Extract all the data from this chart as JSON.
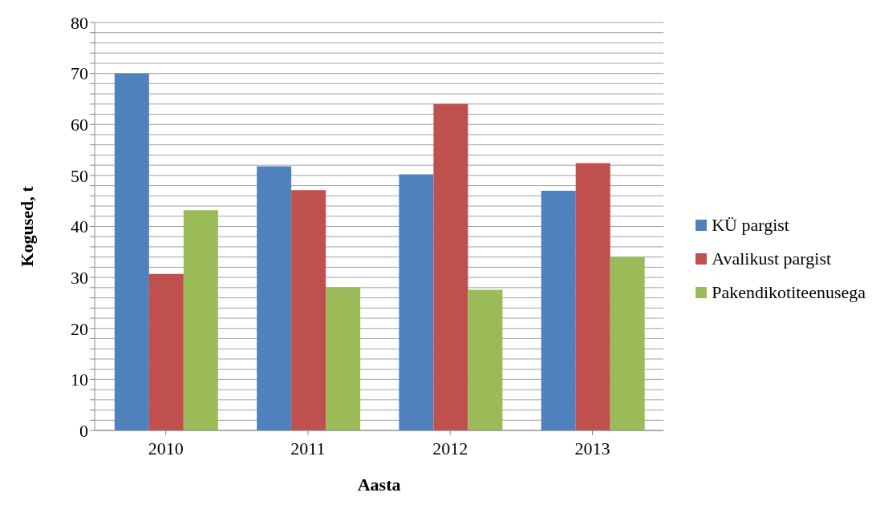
{
  "chart_data": {
    "type": "bar",
    "xlabel": "Aasta",
    "ylabel": "Kogused, t",
    "categories": [
      "2010",
      "2011",
      "2012",
      "2013"
    ],
    "series": [
      {
        "name": "KÜ pargist",
        "color": "#4f81bd",
        "values": [
          70,
          51.8,
          50.2,
          47
        ]
      },
      {
        "name": "Avalikust pargist",
        "color": "#c0504d",
        "values": [
          30.7,
          47.1,
          64,
          52.4
        ]
      },
      {
        "name": "Pakendikotiteenusega",
        "color": "#9bbb59",
        "values": [
          43.2,
          28.1,
          27.6,
          34
        ]
      }
    ],
    "ylim": [
      0,
      80
    ],
    "yticks": [
      0,
      {
        "value": 2,
        "label": null
      },
      {
        "value": 4,
        "label": null
      },
      {
        "value": 6,
        "label": null
      },
      {
        "value": 8,
        "label": null
      },
      10,
      {
        "value": 12,
        "label": null
      },
      {
        "value": 14,
        "label": null
      },
      {
        "value": 16,
        "label": null
      },
      {
        "value": 18,
        "label": null
      },
      20,
      {
        "value": 22,
        "label": null
      },
      {
        "value": 24,
        "label": null
      },
      {
        "value": 26,
        "label": null
      },
      {
        "value": 28,
        "label": null
      },
      30,
      {
        "value": 32,
        "label": null
      },
      {
        "value": 34,
        "label": null
      },
      {
        "value": 36,
        "label": null
      },
      {
        "value": 38,
        "label": null
      },
      40,
      {
        "value": 42,
        "label": null
      },
      {
        "value": 44,
        "label": null
      },
      {
        "value": 46,
        "label": null
      },
      {
        "value": 48,
        "label": null
      },
      50,
      {
        "value": 52,
        "label": null
      },
      {
        "value": 54,
        "label": null
      },
      {
        "value": 56,
        "label": null
      },
      {
        "value": 58,
        "label": null
      },
      60,
      {
        "value": 62,
        "label": null
      },
      {
        "value": 64,
        "label": null
      },
      {
        "value": 66,
        "label": null
      },
      {
        "value": 68,
        "label": null
      },
      70,
      {
        "value": 72,
        "label": null
      },
      {
        "value": 74,
        "label": null
      },
      {
        "value": 76,
        "label": null
      },
      {
        "value": 78,
        "label": null
      },
      80
    ],
    "grid": "y",
    "legend": "right"
  }
}
